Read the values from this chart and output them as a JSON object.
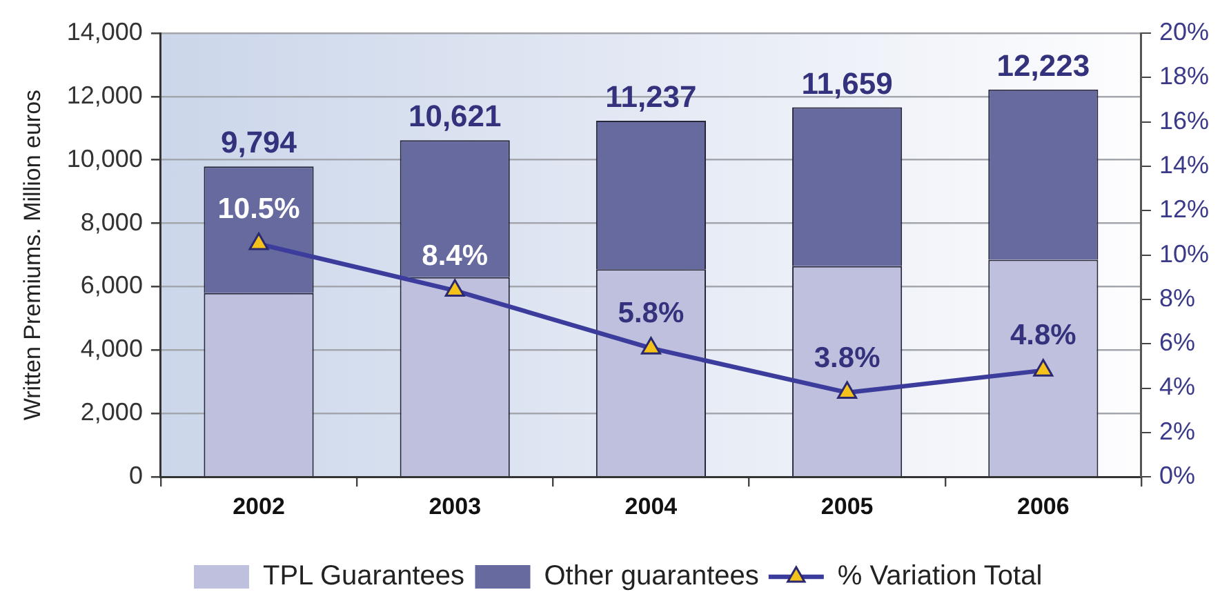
{
  "chart_data": {
    "type": "bar",
    "stacked": true,
    "categories": [
      "2002",
      "2003",
      "2004",
      "2005",
      "2006"
    ],
    "series": [
      {
        "name": "TPL Guarantees",
        "color": "#bfc0de",
        "values": [
          5800,
          6300,
          6550,
          6650,
          6850
        ]
      },
      {
        "name": "Other guarantees",
        "color": "#666a9f",
        "values": [
          3994,
          4321,
          4687,
          5009,
          5373
        ]
      },
      {
        "name": "% Variation Total",
        "type": "line",
        "axis": "y2",
        "color": "#3c3c9c",
        "colors": [
          "#f5c21b",
          "#f5c21b",
          "#f5c21b",
          "#f5c21b",
          "#f5c21b"
        ],
        "values": [
          10.5,
          8.4,
          5.8,
          3.8,
          4.8
        ],
        "value_labels": [
          "10.5%",
          "8.4%",
          "5.8%",
          "3.8%",
          "4.8%"
        ]
      }
    ],
    "totals": [
      "9,794",
      "10,621",
      "11,237",
      "11,659",
      "12,223"
    ],
    "ylabel": "Written Premiums. Million euros",
    "ylim": [
      0,
      14000
    ],
    "yticks": [
      {
        "value": 0,
        "label": "0"
      },
      {
        "value": 2000,
        "label": "2,000"
      },
      {
        "value": 4000,
        "label": "4,000"
      },
      {
        "value": 6000,
        "label": "6,000"
      },
      {
        "value": 8000,
        "label": "8,000"
      },
      {
        "value": 10000,
        "label": "10,000"
      },
      {
        "value": 12000,
        "label": "12,000"
      },
      {
        "value": 14000,
        "label": "14,000"
      }
    ],
    "y2lim": [
      0,
      20
    ],
    "y2ticks": [
      {
        "value": 0,
        "label": "0%"
      },
      {
        "value": 2,
        "label": "2%"
      },
      {
        "value": 4,
        "label": "4%"
      },
      {
        "value": 6,
        "label": "6%"
      },
      {
        "value": 8,
        "label": "8%"
      },
      {
        "value": 10,
        "label": "10%"
      },
      {
        "value": 12,
        "label": "12%"
      },
      {
        "value": 14,
        "label": "14%"
      },
      {
        "value": 16,
        "label": "16%"
      },
      {
        "value": 18,
        "label": "18%"
      },
      {
        "value": 20,
        "label": "20%"
      }
    ],
    "grid": "y",
    "legend": "bottom",
    "marker": "triangle"
  }
}
